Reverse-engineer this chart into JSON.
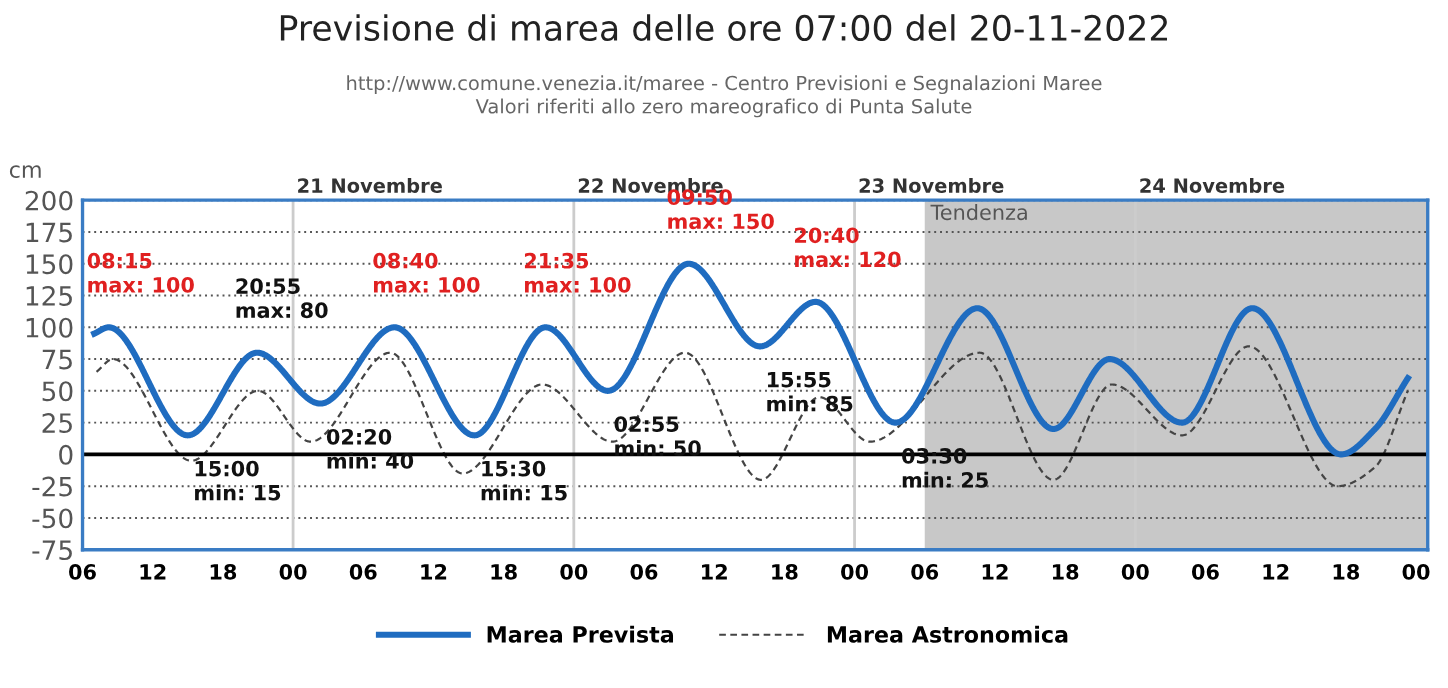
{
  "chart_data": {
    "type": "line",
    "title": "Previsione di marea delle ore 07:00 del 20-11-2022",
    "subtitle": "http://www.comune.venezia.it/maree - Centro Previsioni e Segnalazioni Maree\nValori riferiti allo zero mareografico di Punta Salute",
    "ylabel": "cm",
    "xlim": [
      6,
      121
    ],
    "xticks": [
      {
        "value": 6,
        "label": "06"
      },
      {
        "value": 12,
        "label": "12"
      },
      {
        "value": 18,
        "label": "18"
      },
      {
        "value": 24,
        "label": "00"
      },
      {
        "value": 30,
        "label": "06"
      },
      {
        "value": 36,
        "label": "12"
      },
      {
        "value": 42,
        "label": "18"
      },
      {
        "value": 48,
        "label": "00"
      },
      {
        "value": 54,
        "label": "06"
      },
      {
        "value": 60,
        "label": "12"
      },
      {
        "value": 66,
        "label": "18"
      },
      {
        "value": 72,
        "label": "00"
      },
      {
        "value": 78,
        "label": "06"
      },
      {
        "value": 84,
        "label": "12"
      },
      {
        "value": 90,
        "label": "18"
      },
      {
        "value": 96,
        "label": "00"
      },
      {
        "value": 102,
        "label": "06"
      },
      {
        "value": 108,
        "label": "12"
      },
      {
        "value": 114,
        "label": "18"
      },
      {
        "value": 120,
        "label": "00"
      }
    ],
    "ylim": [
      -75,
      200
    ],
    "yticks": [
      -75,
      -50,
      -25,
      0,
      25,
      50,
      75,
      100,
      125,
      150,
      175,
      200
    ],
    "grid": "y",
    "legend": "bottom",
    "marker": "none",
    "series": [
      {
        "name": "Marea Prevista",
        "color": "#1f6cc0",
        "line_style": "solid",
        "x": [
          7,
          8.25,
          15,
          20.92,
          26.33,
          32.67,
          39.5,
          45.58,
          50.92,
          57.83,
          63.92,
          68.67,
          75.5,
          82.5,
          89,
          93.8,
          100,
          106,
          113.6,
          116.5,
          119.3
        ],
        "values": [
          95,
          100,
          15,
          80,
          40,
          100,
          15,
          100,
          50,
          150,
          85,
          120,
          25,
          115,
          20,
          75,
          25,
          115,
          0,
          20,
          60
        ]
      },
      {
        "name": "Marea Astronomica",
        "color": "#444444",
        "line_style": "dashed",
        "x": [
          7.2,
          8.6,
          15.3,
          21,
          25.5,
          32.3,
          38.5,
          45.3,
          51.3,
          57.5,
          64,
          69,
          73.3,
          82.7,
          89,
          94,
          100,
          105.7,
          113.3,
          116.5,
          119.3
        ],
        "values": [
          65,
          75,
          -5,
          50,
          10,
          80,
          -15,
          55,
          10,
          80,
          -20,
          45,
          10,
          80,
          -20,
          55,
          15,
          85,
          -25,
          -10,
          50
        ]
      }
    ],
    "ref_lines": [
      {
        "axis": "y",
        "value": 0,
        "color": "#000000"
      },
      {
        "axis": "x",
        "value": 24,
        "label": "21 Novembre",
        "color": "#cccccc"
      },
      {
        "axis": "x",
        "value": 48,
        "label": "22 Novembre",
        "color": "#cccccc"
      },
      {
        "axis": "x",
        "value": 72,
        "label": "23 Novembre",
        "color": "#cccccc"
      },
      {
        "axis": "x",
        "value": 96,
        "label": "24 Novembre",
        "color": "#cccccc"
      }
    ],
    "bands": [
      {
        "axis": "x",
        "from": 78,
        "to": 121,
        "label": "Tendenza",
        "color": "#c8c8c8"
      }
    ],
    "annotations": [
      {
        "text": "08:15\nmax: 100",
        "x": 8.25,
        "y": 100
      },
      {
        "text": "15:00\nmin: 15",
        "x": 15,
        "y": 15
      },
      {
        "text": "20:55\nmax: 80",
        "x": 20.92,
        "y": 80
      },
      {
        "text": "02:20\nmin: 40",
        "x": 26.33,
        "y": 40
      },
      {
        "text": "08:40\nmax: 100",
        "x": 32.67,
        "y": 100
      },
      {
        "text": "15:30\nmin: 15",
        "x": 39.5,
        "y": 15
      },
      {
        "text": "21:35\nmax: 100",
        "x": 45.58,
        "y": 100
      },
      {
        "text": "02:55\nmin: 50",
        "x": 50.92,
        "y": 50
      },
      {
        "text": "09:50\nmax: 150",
        "x": 57.83,
        "y": 150
      },
      {
        "text": "15:55\nmin: 85",
        "x": 63.92,
        "y": 85
      },
      {
        "text": "20:40\nmax: 120",
        "x": 68.67,
        "y": 120
      },
      {
        "text": "03:30\nmin: 25",
        "x": 75.5,
        "y": 25
      }
    ]
  }
}
